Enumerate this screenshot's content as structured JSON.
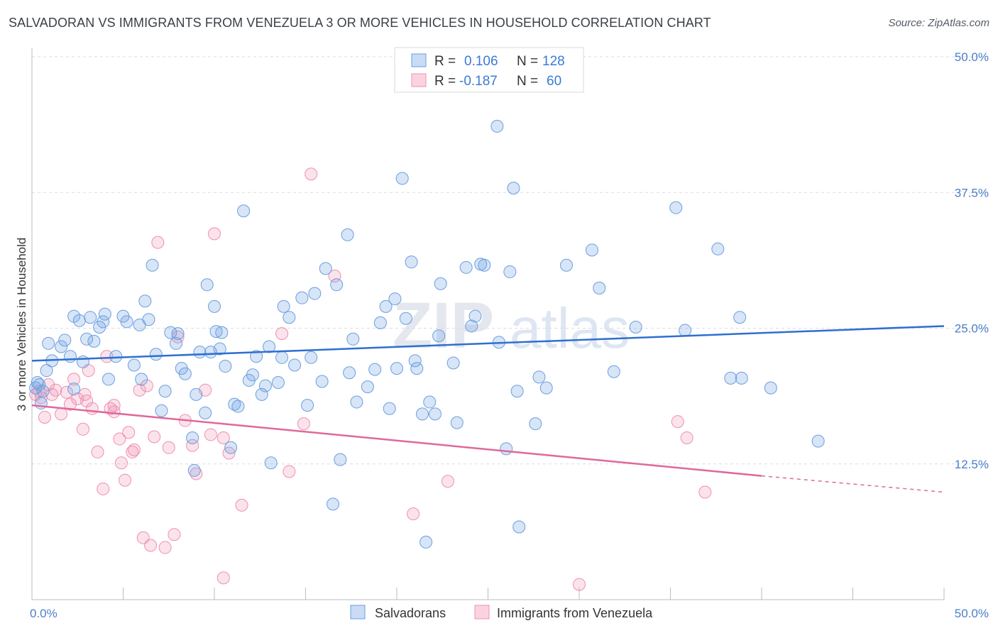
{
  "title": "SALVADORAN VS IMMIGRANTS FROM VENEZUELA 3 OR MORE VEHICLES IN HOUSEHOLD CORRELATION CHART",
  "source": "Source: ZipAtlas.com",
  "watermark": {
    "zip": "ZIP",
    "atlas": "atlas"
  },
  "colors": {
    "blue": "#6a9fe0",
    "blue_line": "#2f6fd0",
    "pink": "#f08fb0",
    "pink_line": "#e0689a",
    "tick_text": "#4a7fc8"
  },
  "chart_data": {
    "type": "scatter",
    "title": "SALVADORAN VS IMMIGRANTS FROM VENEZUELA 3 OR MORE VEHICLES IN HOUSEHOLD CORRELATION CHART",
    "xlabel": "",
    "ylabel": "3 or more Vehicles in Household",
    "xlim": [
      0,
      50
    ],
    "ylim": [
      0,
      50
    ],
    "x_tick_labels": [
      "0.0%",
      "50.0%"
    ],
    "y_ticks": [
      12.5,
      25.0,
      37.5,
      50.0
    ],
    "y_tick_labels": [
      "12.5%",
      "25.0%",
      "37.5%",
      "50.0%"
    ],
    "legend": [
      {
        "name": "Salvadorans",
        "r_label": "R =",
        "r": "0.106",
        "n_label": "N =",
        "n": "128",
        "color": "#6a9fe0"
      },
      {
        "name": "Immigrants from Venezuela",
        "r_label": "R =",
        "r": "-0.187",
        "n_label": "N =",
        "n": "60",
        "color": "#f08fb0"
      }
    ],
    "series": [
      {
        "name": "Salvadorans",
        "color": "#6a9fe0",
        "trend": {
          "x0": 0,
          "y0": 22.0,
          "x1": 50,
          "y1": 25.2
        },
        "points": [
          [
            0.4,
            19.8
          ],
          [
            0.6,
            19.2
          ],
          [
            0.8,
            21.1
          ],
          [
            1.1,
            22.0
          ],
          [
            1.6,
            23.3
          ],
          [
            1.8,
            23.9
          ],
          [
            0.9,
            23.6
          ],
          [
            2.1,
            22.4
          ],
          [
            2.8,
            21.9
          ],
          [
            2.3,
            19.4
          ],
          [
            2.3,
            26.1
          ],
          [
            2.6,
            25.7
          ],
          [
            3.2,
            26.0
          ],
          [
            3.0,
            24.0
          ],
          [
            3.4,
            23.8
          ],
          [
            3.9,
            25.6
          ],
          [
            3.7,
            25.1
          ],
          [
            4.0,
            26.3
          ],
          [
            4.2,
            20.3
          ],
          [
            4.6,
            22.4
          ],
          [
            5.0,
            26.1
          ],
          [
            5.2,
            25.6
          ],
          [
            5.6,
            21.6
          ],
          [
            5.9,
            25.3
          ],
          [
            6.0,
            20.3
          ],
          [
            6.2,
            27.5
          ],
          [
            6.4,
            25.8
          ],
          [
            6.6,
            30.8
          ],
          [
            6.8,
            22.6
          ],
          [
            7.1,
            17.4
          ],
          [
            7.3,
            19.2
          ],
          [
            7.6,
            24.6
          ],
          [
            7.9,
            23.6
          ],
          [
            8.0,
            24.5
          ],
          [
            8.2,
            21.3
          ],
          [
            8.4,
            20.8
          ],
          [
            8.8,
            14.9
          ],
          [
            8.9,
            11.9
          ],
          [
            9.0,
            18.9
          ],
          [
            9.2,
            22.8
          ],
          [
            9.5,
            17.2
          ],
          [
            9.6,
            29.0
          ],
          [
            9.8,
            22.8
          ],
          [
            10.0,
            27.0
          ],
          [
            10.1,
            24.7
          ],
          [
            10.3,
            23.1
          ],
          [
            10.4,
            24.6
          ],
          [
            10.6,
            21.5
          ],
          [
            10.9,
            14.0
          ],
          [
            11.1,
            18.0
          ],
          [
            11.3,
            17.8
          ],
          [
            11.6,
            35.8
          ],
          [
            11.9,
            20.2
          ],
          [
            12.1,
            20.7
          ],
          [
            12.3,
            22.4
          ],
          [
            12.6,
            18.9
          ],
          [
            12.8,
            19.7
          ],
          [
            13.0,
            23.3
          ],
          [
            13.1,
            12.6
          ],
          [
            13.5,
            20.0
          ],
          [
            13.7,
            22.3
          ],
          [
            13.8,
            27.0
          ],
          [
            14.1,
            26.0
          ],
          [
            14.4,
            21.6
          ],
          [
            14.8,
            27.8
          ],
          [
            15.1,
            17.9
          ],
          [
            15.3,
            22.3
          ],
          [
            15.5,
            28.2
          ],
          [
            15.9,
            20.1
          ],
          [
            16.1,
            30.5
          ],
          [
            16.5,
            8.8
          ],
          [
            16.7,
            29.0
          ],
          [
            16.9,
            12.9
          ],
          [
            17.3,
            33.6
          ],
          [
            17.4,
            20.9
          ],
          [
            17.6,
            24.0
          ],
          [
            17.8,
            18.2
          ],
          [
            18.4,
            19.6
          ],
          [
            18.8,
            21.2
          ],
          [
            19.1,
            25.5
          ],
          [
            19.4,
            27.0
          ],
          [
            19.6,
            17.6
          ],
          [
            19.9,
            27.7
          ],
          [
            20.0,
            21.3
          ],
          [
            20.3,
            38.8
          ],
          [
            20.5,
            25.9
          ],
          [
            20.8,
            31.1
          ],
          [
            21.0,
            22.0
          ],
          [
            21.1,
            21.3
          ],
          [
            21.4,
            17.1
          ],
          [
            21.6,
            5.3
          ],
          [
            21.8,
            18.2
          ],
          [
            22.1,
            17.1
          ],
          [
            22.3,
            24.3
          ],
          [
            22.4,
            29.1
          ],
          [
            23.3,
            16.3
          ],
          [
            23.1,
            21.8
          ],
          [
            23.8,
            30.6
          ],
          [
            24.1,
            25.2
          ],
          [
            24.3,
            26.1
          ],
          [
            24.6,
            30.9
          ],
          [
            24.8,
            30.8
          ],
          [
            25.6,
            23.7
          ],
          [
            25.5,
            43.6
          ],
          [
            26.0,
            13.9
          ],
          [
            26.2,
            30.2
          ],
          [
            26.4,
            37.9
          ],
          [
            26.6,
            19.2
          ],
          [
            26.7,
            6.7
          ],
          [
            27.6,
            16.2
          ],
          [
            27.8,
            20.5
          ],
          [
            28.2,
            19.5
          ],
          [
            29.3,
            30.8
          ],
          [
            30.7,
            32.2
          ],
          [
            31.1,
            28.7
          ],
          [
            31.9,
            21.0
          ],
          [
            33.1,
            25.1
          ],
          [
            35.3,
            36.1
          ],
          [
            35.8,
            24.8
          ],
          [
            37.6,
            32.3
          ],
          [
            38.8,
            26.0
          ],
          [
            38.3,
            20.4
          ],
          [
            38.9,
            20.4
          ],
          [
            40.5,
            19.5
          ],
          [
            43.1,
            14.6
          ],
          [
            0.2,
            19.5
          ],
          [
            0.3,
            20.0
          ],
          [
            0.5,
            18.1
          ]
        ]
      },
      {
        "name": "Immigrants from Venezuela",
        "color": "#f08fb0",
        "trend": {
          "x0": 0,
          "y0": 17.9,
          "x1": 40,
          "y1": 11.4
        },
        "trend_dashed": {
          "x0": 40,
          "y0": 11.4,
          "x1": 50,
          "y1": 9.9
        },
        "points": [
          [
            0.2,
            18.9
          ],
          [
            0.4,
            19.2
          ],
          [
            0.5,
            18.6
          ],
          [
            0.7,
            16.8
          ],
          [
            0.9,
            19.8
          ],
          [
            1.1,
            18.9
          ],
          [
            1.3,
            19.3
          ],
          [
            1.6,
            17.1
          ],
          [
            1.9,
            19.1
          ],
          [
            2.1,
            18.0
          ],
          [
            2.3,
            20.3
          ],
          [
            2.5,
            18.5
          ],
          [
            2.8,
            15.7
          ],
          [
            3.0,
            18.3
          ],
          [
            3.1,
            21.1
          ],
          [
            3.3,
            17.6
          ],
          [
            3.6,
            13.6
          ],
          [
            3.9,
            10.2
          ],
          [
            4.1,
            22.4
          ],
          [
            4.3,
            17.6
          ],
          [
            4.5,
            17.9
          ],
          [
            4.8,
            14.8
          ],
          [
            4.9,
            12.6
          ],
          [
            5.1,
            11.0
          ],
          [
            5.3,
            15.4
          ],
          [
            5.5,
            13.6
          ],
          [
            5.6,
            13.8
          ],
          [
            5.9,
            19.3
          ],
          [
            6.1,
            5.7
          ],
          [
            6.3,
            19.7
          ],
          [
            6.5,
            5.0
          ],
          [
            6.7,
            15.0
          ],
          [
            6.9,
            32.9
          ],
          [
            7.3,
            4.8
          ],
          [
            7.5,
            14.0
          ],
          [
            7.8,
            6.0
          ],
          [
            8.0,
            24.2
          ],
          [
            8.4,
            16.5
          ],
          [
            8.8,
            14.2
          ],
          [
            9.0,
            11.6
          ],
          [
            9.5,
            19.3
          ],
          [
            9.8,
            15.2
          ],
          [
            10.0,
            33.7
          ],
          [
            10.5,
            14.9
          ],
          [
            10.8,
            13.5
          ],
          [
            11.5,
            8.7
          ],
          [
            13.7,
            24.5
          ],
          [
            14.1,
            11.8
          ],
          [
            14.9,
            16.2
          ],
          [
            15.3,
            39.2
          ],
          [
            16.6,
            29.8
          ],
          [
            20.9,
            7.9
          ],
          [
            22.8,
            10.9
          ],
          [
            30.0,
            1.4
          ],
          [
            35.4,
            16.4
          ],
          [
            35.9,
            14.9
          ],
          [
            36.9,
            9.9
          ],
          [
            10.5,
            2.0
          ],
          [
            2.9,
            18.9
          ],
          [
            4.5,
            17.3
          ]
        ]
      }
    ]
  }
}
